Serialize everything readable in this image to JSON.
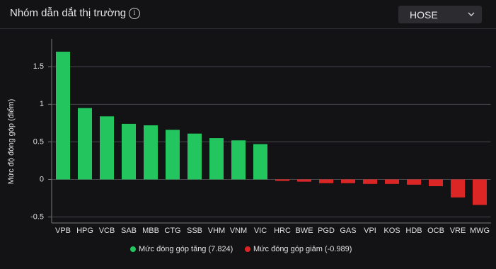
{
  "header": {
    "title": "Nhóm dẫn dắt thị trường",
    "dropdown": "HOSE"
  },
  "chart_data": {
    "type": "bar",
    "y_label": "Mức độ đóng góp (điểm)",
    "categories": [
      "VPB",
      "HPG",
      "VCB",
      "SAB",
      "MBB",
      "CTG",
      "SSB",
      "VHM",
      "VNM",
      "VIC",
      "HRC",
      "BWE",
      "PGD",
      "GAS",
      "VPI",
      "KOS",
      "HDB",
      "OCB",
      "VRE",
      "MWG"
    ],
    "series": [
      {
        "name": "Mức đóng góp tăng (7.824)",
        "color": "#22c55e",
        "values": [
          1.7,
          0.95,
          0.84,
          0.74,
          0.72,
          0.66,
          0.61,
          0.55,
          0.52,
          0.47,
          null,
          null,
          null,
          null,
          null,
          null,
          null,
          null,
          null,
          null
        ]
      },
      {
        "name": "Mức đóng góp giảm (-0.989)",
        "color": "#dc2626",
        "values": [
          null,
          null,
          null,
          null,
          null,
          null,
          null,
          null,
          null,
          null,
          -0.02,
          -0.03,
          -0.05,
          -0.05,
          -0.06,
          -0.06,
          -0.07,
          -0.09,
          -0.24,
          -0.34
        ]
      }
    ],
    "ylim": [
      -0.58,
      1.87
    ],
    "yticks": [
      -0.5,
      0,
      0.5,
      1,
      1.5
    ],
    "grid": true
  }
}
